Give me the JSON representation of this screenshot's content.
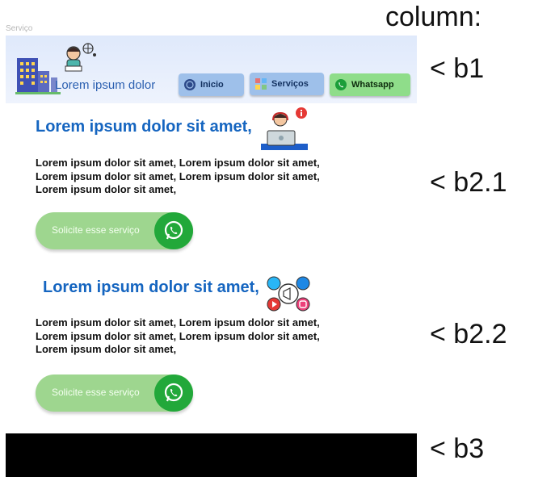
{
  "frame_label": "Serviço",
  "header": {
    "brand_text": "Lorem ipsum dolor",
    "nav": [
      {
        "label": "Inicio",
        "icon": "globe-icon"
      },
      {
        "label": "Serviços",
        "icon": "grid-icon"
      },
      {
        "label": "Whatsapp",
        "icon": "whatsapp-icon"
      }
    ]
  },
  "sections": [
    {
      "title": "Lorem ipsum dolor sit amet,",
      "text": "Lorem ipsum dolor sit amet, Lorem ipsum dolor sit amet, Lorem ipsum dolor sit amet, Lorem ipsum dolor sit amet, Lorem ipsum dolor sit amet,",
      "cta_label": "Solicite esse serviço",
      "illustration": "support-agent-icon"
    },
    {
      "title": "Lorem ipsum dolor sit amet,",
      "text": "Lorem ipsum dolor sit amet, Lorem ipsum dolor sit amet, Lorem ipsum dolor sit amet, Lorem ipsum dolor sit amet, Lorem ipsum dolor sit amet,",
      "cta_label": "Solicite esse serviço",
      "illustration": "social-media-icon"
    }
  ],
  "annotations": {
    "heading": "column:",
    "b1": "< b1",
    "b2_1": "< b2.1",
    "b2_2": "< b2.2",
    "b3": "< b3"
  },
  "colors": {
    "header_bg": "#dfe9fb",
    "nav_blue": "#9ec0ea",
    "nav_green": "#8fdd8a",
    "title_blue": "#1565c0",
    "cta_green": "#9ed68f",
    "whatsapp_green": "#22a83a",
    "footer": "#000000"
  }
}
